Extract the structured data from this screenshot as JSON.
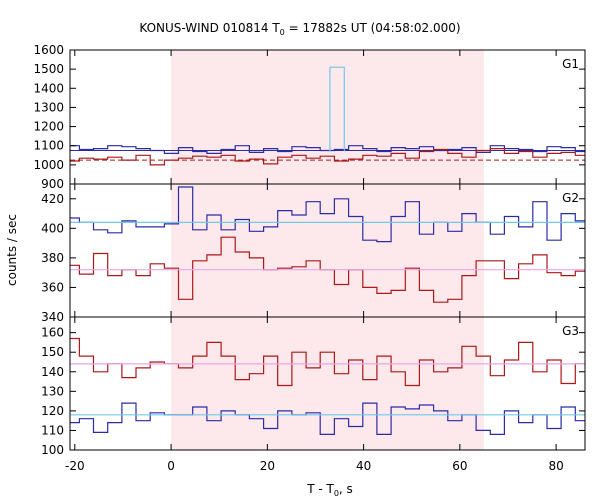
{
  "chart_data": {
    "type": "line",
    "title_parts": {
      "main": "KONUS-WIND 010814 T",
      "sub": "0",
      "rest": " = 17882s UT (04:58:02.000)"
    },
    "ylabel": "counts / sec",
    "xlabel_parts": {
      "main": "T - T",
      "sub": "0",
      "rest": ", s"
    },
    "xlim": [
      -21,
      86
    ],
    "x_ticks": [
      -20,
      0,
      20,
      40,
      60,
      80
    ],
    "x_tick_labels": [
      "-20",
      "0",
      "20",
      "40",
      "60",
      "80"
    ],
    "highlight_interval": [
      0,
      65
    ],
    "colors": {
      "highlight": "#fde9ec",
      "blue": "#2b2ba6",
      "red": "#aa1818",
      "cyan": "#72c8ec",
      "pink": "#e9a6e4",
      "frame": "#000000"
    },
    "panels": [
      {
        "label": "G1",
        "ylim": [
          900,
          1600
        ],
        "y_ticks": [
          900,
          1000,
          1100,
          1200,
          1300,
          1400,
          1500,
          1600
        ],
        "y_tick_labels": [
          "900",
          "1000",
          "1100",
          "1200",
          "1300",
          "1400",
          "1500",
          "1600"
        ],
        "series": [
          {
            "color": "blue",
            "x_start": -22,
            "bin_width": 2.944,
            "values": [
              1100,
              1080,
              1085,
              1100,
              1095,
              1085,
              1075,
              1060,
              1090,
              1070,
              1060,
              1080,
              1100,
              1065,
              1085,
              1070,
              1095,
              1090,
              1075,
              1080,
              1100,
              1085,
              1070,
              1090,
              1085,
              1095,
              1075,
              1080,
              1090,
              1065,
              1100,
              1085,
              1080,
              1070,
              1095,
              1090,
              1070
            ]
          },
          {
            "color": "red",
            "x_start": -22,
            "bin_width": 2.944,
            "values": [
              1020,
              1035,
              1030,
              1040,
              1025,
              1050,
              1000,
              1025,
              1035,
              1045,
              1040,
              1050,
              1020,
              1030,
              1005,
              1040,
              1050,
              1035,
              1045,
              1020,
              1030,
              1050,
              1045,
              1060,
              1035,
              1070,
              1080,
              1060,
              1040,
              1075,
              1085,
              1060,
              1070,
              1040,
              1060,
              1065,
              1050
            ]
          },
          {
            "color": "cyan",
            "x": [
              33.0,
              33.0,
              36.0,
              36.0
            ],
            "y": [
              1070,
              1510,
              1510,
              1070
            ]
          }
        ],
        "reference_lines": [
          {
            "color": "blue",
            "y": 1075,
            "dash": false
          },
          {
            "color": "red",
            "y": 1025,
            "dash": true
          }
        ]
      },
      {
        "label": "G2",
        "ylim": [
          340,
          430
        ],
        "y_ticks": [
          340,
          360,
          380,
          400,
          420
        ],
        "y_tick_labels": [
          "340",
          "360",
          "380",
          "400",
          "420"
        ],
        "series": [
          {
            "color": "blue",
            "x_start": -22,
            "bin_width": 2.944,
            "values": [
              407,
              404,
              399,
              397,
              405,
              401,
              401,
              403,
              428,
              399,
              409,
              399,
              406,
              398,
              401,
              412,
              409,
              418,
              410,
              420,
              408,
              392,
              391,
              408,
              418,
              396,
              404,
              398,
              410,
              404,
              396,
              408,
              401,
              418,
              392,
              410,
              405
            ]
          },
          {
            "color": "red",
            "x_start": -22,
            "bin_width": 2.944,
            "values": [
              375,
              369,
              383,
              368,
              372,
              368,
              376,
              373,
              352,
              378,
              382,
              394,
              384,
              380,
              372,
              373,
              374,
              378,
              372,
              362,
              372,
              360,
              356,
              358,
              373,
              358,
              350,
              352,
              368,
              378,
              378,
              366,
              376,
              382,
              370,
              368,
              371
            ]
          },
          {
            "color": "cyan",
            "x": [
              -22,
              87
            ],
            "y": [
              404,
              404
            ]
          },
          {
            "color": "pink",
            "x": [
              -22,
              87
            ],
            "y": [
              372,
              372
            ]
          }
        ]
      },
      {
        "label": "G3",
        "ylim": [
          100,
          168
        ],
        "y_ticks": [
          100,
          110,
          120,
          130,
          140,
          150,
          160
        ],
        "y_tick_labels": [
          "100",
          "110",
          "120",
          "130",
          "140",
          "150",
          "160"
        ],
        "series": [
          {
            "color": "red",
            "x_start": -22,
            "bin_width": 2.944,
            "values": [
              157,
              148,
              140,
              144,
              137,
              142,
              145,
              144,
              142,
              148,
              155,
              148,
              136,
              139,
              148,
              133,
              150,
              142,
              150,
              139,
              146,
              136,
              148,
              140,
              133,
              146,
              140,
              142,
              153,
              148,
              138,
              146,
              155,
              140,
              146,
              134,
              144
            ]
          },
          {
            "color": "blue",
            "x_start": -22,
            "bin_width": 2.944,
            "values": [
              114,
              116,
              109,
              114,
              124,
              115,
              119,
              118,
              118,
              122,
              115,
              120,
              118,
              116,
              111,
              120,
              118,
              119,
              108,
              116,
              112,
              124,
              108,
              122,
              121,
              123,
              120,
              115,
              118,
              110,
              108,
              120,
              114,
              118,
              111,
              122,
              115
            ]
          },
          {
            "color": "cyan",
            "x": [
              -22,
              87
            ],
            "y": [
              118,
              118
            ]
          },
          {
            "color": "pink",
            "x": [
              -22,
              87
            ],
            "y": [
              144,
              144
            ]
          }
        ]
      }
    ]
  }
}
